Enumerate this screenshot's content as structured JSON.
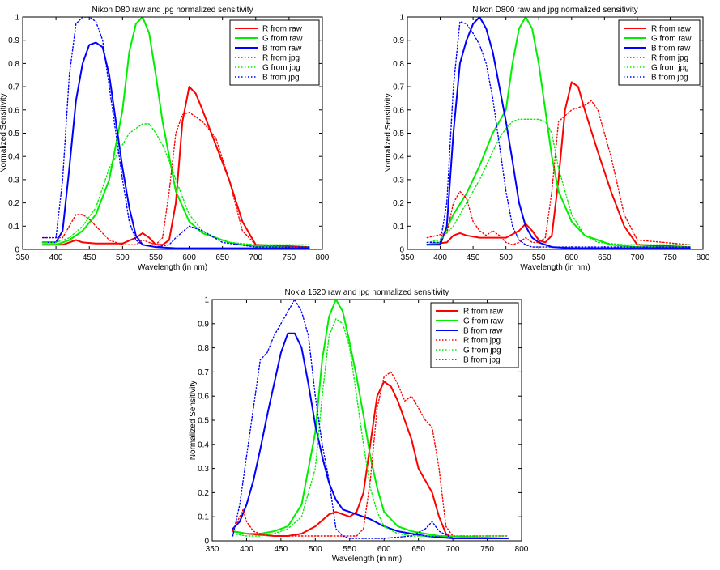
{
  "chart_data": [
    {
      "type": "line",
      "title": "Nikon D80 raw and jpg normalized sensitivity",
      "xlabel": "Wavelength (in nm)",
      "ylabel": "Normalized Sensitivity",
      "xlim": [
        350,
        800
      ],
      "ylim": [
        0,
        1
      ],
      "xticks": [
        "350",
        "400",
        "450",
        "500",
        "550",
        "600",
        "650",
        "700",
        "750",
        "800"
      ],
      "yticks": [
        "0",
        "0.1",
        "0.2",
        "0.3",
        "0.4",
        "0.5",
        "0.6",
        "0.7",
        "0.8",
        "0.9",
        "1"
      ],
      "legend_position": "top-right",
      "series": [
        {
          "name": "R from raw",
          "color": "#ff0000",
          "dash": "solid",
          "x": [
            380,
            410,
            420,
            430,
            440,
            460,
            480,
            500,
            520,
            530,
            540,
            550,
            560,
            570,
            580,
            590,
            600,
            610,
            620,
            640,
            660,
            680,
            700,
            780
          ],
          "y": [
            0.02,
            0.02,
            0.03,
            0.04,
            0.03,
            0.025,
            0.025,
            0.025,
            0.05,
            0.07,
            0.05,
            0.02,
            0.02,
            0.04,
            0.2,
            0.55,
            0.7,
            0.67,
            0.6,
            0.45,
            0.3,
            0.12,
            0.02,
            0.01
          ]
        },
        {
          "name": "G from raw",
          "color": "#00ee00",
          "dash": "solid",
          "x": [
            380,
            400,
            420,
            440,
            460,
            480,
            500,
            510,
            520,
            530,
            540,
            550,
            560,
            580,
            600,
            620,
            640,
            660,
            680,
            700,
            780
          ],
          "y": [
            0.02,
            0.02,
            0.04,
            0.08,
            0.15,
            0.3,
            0.6,
            0.85,
            0.97,
            1.0,
            0.93,
            0.75,
            0.55,
            0.25,
            0.12,
            0.07,
            0.05,
            0.03,
            0.02,
            0.015,
            0.01
          ]
        },
        {
          "name": "B from raw",
          "color": "#0000ff",
          "dash": "solid",
          "x": [
            380,
            400,
            410,
            420,
            430,
            440,
            450,
            460,
            470,
            480,
            490,
            500,
            510,
            520,
            530,
            550,
            580,
            600,
            780
          ],
          "y": [
            0.03,
            0.03,
            0.08,
            0.35,
            0.64,
            0.8,
            0.88,
            0.89,
            0.87,
            0.75,
            0.55,
            0.35,
            0.18,
            0.06,
            0.02,
            0.01,
            0.005,
            0.005,
            0.005
          ]
        },
        {
          "name": "R from jpg",
          "color": "#ff0000",
          "dash": "dotted",
          "x": [
            380,
            410,
            420,
            430,
            440,
            450,
            460,
            480,
            500,
            520,
            530,
            540,
            550,
            560,
            570,
            580,
            590,
            600,
            620,
            640,
            660,
            680,
            700,
            780
          ],
          "y": [
            0.05,
            0.05,
            0.1,
            0.15,
            0.15,
            0.13,
            0.1,
            0.04,
            0.02,
            0.02,
            0.04,
            0.03,
            0.02,
            0.05,
            0.25,
            0.5,
            0.58,
            0.59,
            0.55,
            0.48,
            0.3,
            0.08,
            0.02,
            0.01
          ]
        },
        {
          "name": "G from jpg",
          "color": "#00ee00",
          "dash": "dotted",
          "x": [
            380,
            400,
            420,
            440,
            460,
            480,
            500,
            510,
            520,
            530,
            540,
            550,
            560,
            570,
            580,
            600,
            620,
            640,
            660,
            700,
            780
          ],
          "y": [
            0.03,
            0.03,
            0.05,
            0.1,
            0.18,
            0.35,
            0.45,
            0.5,
            0.52,
            0.54,
            0.54,
            0.5,
            0.45,
            0.38,
            0.3,
            0.15,
            0.08,
            0.05,
            0.03,
            0.02,
            0.02
          ]
        },
        {
          "name": "B from jpg",
          "color": "#0000ff",
          "dash": "dotted",
          "x": [
            380,
            400,
            410,
            420,
            430,
            440,
            450,
            460,
            470,
            480,
            490,
            500,
            510,
            520,
            530,
            550,
            570,
            580,
            600,
            620,
            650,
            700,
            780
          ],
          "y": [
            0.05,
            0.05,
            0.3,
            0.75,
            0.97,
            1.0,
            1.0,
            0.98,
            0.9,
            0.7,
            0.5,
            0.3,
            0.12,
            0.04,
            0.02,
            0.01,
            0.02,
            0.05,
            0.1,
            0.08,
            0.03,
            0.01,
            0.01
          ]
        }
      ]
    },
    {
      "type": "line",
      "title": "Nikon D800 raw and jpg normalized sensitivity",
      "xlabel": "Wavelength (in nm)",
      "ylabel": "Normalized Sensitivity",
      "xlim": [
        350,
        800
      ],
      "ylim": [
        0,
        1
      ],
      "xticks": [
        "350",
        "400",
        "450",
        "500",
        "550",
        "600",
        "650",
        "700",
        "750",
        "800"
      ],
      "yticks": [
        "0",
        "0.1",
        "0.2",
        "0.3",
        "0.4",
        "0.5",
        "0.6",
        "0.7",
        "0.8",
        "0.9",
        "1"
      ],
      "legend_position": "top-right",
      "series": [
        {
          "name": "R from raw",
          "color": "#ff0000",
          "dash": "solid",
          "x": [
            380,
            410,
            420,
            430,
            440,
            460,
            480,
            500,
            520,
            530,
            540,
            550,
            560,
            570,
            580,
            590,
            600,
            610,
            620,
            640,
            660,
            680,
            700,
            780
          ],
          "y": [
            0.02,
            0.03,
            0.06,
            0.07,
            0.06,
            0.05,
            0.05,
            0.05,
            0.08,
            0.11,
            0.08,
            0.04,
            0.03,
            0.06,
            0.3,
            0.6,
            0.72,
            0.7,
            0.6,
            0.42,
            0.25,
            0.1,
            0.02,
            0.01
          ]
        },
        {
          "name": "G from raw",
          "color": "#00ee00",
          "dash": "solid",
          "x": [
            380,
            400,
            420,
            440,
            460,
            480,
            500,
            510,
            520,
            530,
            540,
            550,
            560,
            570,
            580,
            600,
            620,
            640,
            660,
            680,
            700,
            780
          ],
          "y": [
            0.02,
            0.03,
            0.15,
            0.24,
            0.36,
            0.5,
            0.6,
            0.8,
            0.95,
            1.0,
            0.95,
            0.8,
            0.6,
            0.4,
            0.25,
            0.12,
            0.06,
            0.04,
            0.02,
            0.015,
            0.01,
            0.01
          ]
        },
        {
          "name": "B from raw",
          "color": "#0000ff",
          "dash": "solid",
          "x": [
            380,
            400,
            410,
            420,
            430,
            440,
            450,
            460,
            470,
            480,
            490,
            500,
            510,
            520,
            530,
            540,
            550,
            570,
            600,
            780
          ],
          "y": [
            0.02,
            0.02,
            0.1,
            0.5,
            0.8,
            0.9,
            0.97,
            1.0,
            0.95,
            0.85,
            0.7,
            0.55,
            0.38,
            0.2,
            0.1,
            0.05,
            0.03,
            0.01,
            0.005,
            0.005
          ]
        },
        {
          "name": "R from jpg",
          "color": "#ff0000",
          "dash": "dotted",
          "x": [
            380,
            410,
            420,
            430,
            440,
            450,
            460,
            470,
            480,
            490,
            500,
            510,
            520,
            530,
            540,
            550,
            560,
            570,
            580,
            600,
            620,
            630,
            640,
            660,
            680,
            700,
            780
          ],
          "y": [
            0.05,
            0.07,
            0.2,
            0.25,
            0.22,
            0.12,
            0.08,
            0.06,
            0.08,
            0.06,
            0.03,
            0.02,
            0.03,
            0.05,
            0.03,
            0.03,
            0.05,
            0.25,
            0.55,
            0.6,
            0.62,
            0.64,
            0.6,
            0.4,
            0.15,
            0.04,
            0.02
          ]
        },
        {
          "name": "G from jpg",
          "color": "#00ee00",
          "dash": "dotted",
          "x": [
            380,
            400,
            420,
            440,
            460,
            480,
            490,
            500,
            510,
            520,
            530,
            540,
            550,
            560,
            570,
            580,
            600,
            620,
            640,
            680,
            780
          ],
          "y": [
            0.03,
            0.04,
            0.1,
            0.2,
            0.3,
            0.42,
            0.48,
            0.52,
            0.55,
            0.56,
            0.56,
            0.56,
            0.56,
            0.55,
            0.5,
            0.35,
            0.15,
            0.06,
            0.03,
            0.02,
            0.02
          ]
        },
        {
          "name": "B from jpg",
          "color": "#0000ff",
          "dash": "dotted",
          "x": [
            380,
            400,
            410,
            420,
            430,
            440,
            450,
            460,
            470,
            480,
            490,
            500,
            510,
            520,
            530,
            540,
            550,
            600,
            780
          ],
          "y": [
            0.03,
            0.03,
            0.2,
            0.7,
            0.98,
            0.97,
            0.93,
            0.88,
            0.8,
            0.65,
            0.45,
            0.25,
            0.1,
            0.04,
            0.02,
            0.01,
            0.01,
            0.01,
            0.01
          ]
        }
      ]
    },
    {
      "type": "line",
      "title": "Nokia 1520 raw and jpg normalized sensitivity",
      "xlabel": "Wavelength (in nm)",
      "ylabel": "Normalized Sensitivity",
      "xlim": [
        350,
        800
      ],
      "ylim": [
        0,
        1
      ],
      "xticks": [
        "350",
        "400",
        "450",
        "500",
        "550",
        "600",
        "650",
        "700",
        "750",
        "800"
      ],
      "yticks": [
        "0",
        "0.1",
        "0.2",
        "0.3",
        "0.4",
        "0.5",
        "0.6",
        "0.7",
        "0.8",
        "0.9",
        "1"
      ],
      "legend_position": "top-right",
      "series": [
        {
          "name": "R from raw",
          "color": "#ff0000",
          "dash": "solid",
          "x": [
            380,
            400,
            420,
            440,
            460,
            480,
            500,
            520,
            530,
            540,
            550,
            560,
            570,
            580,
            590,
            600,
            610,
            620,
            630,
            640,
            650,
            660,
            670,
            680,
            690,
            700,
            780
          ],
          "y": [
            0.04,
            0.03,
            0.025,
            0.02,
            0.02,
            0.03,
            0.06,
            0.11,
            0.12,
            0.11,
            0.1,
            0.12,
            0.2,
            0.4,
            0.6,
            0.66,
            0.64,
            0.58,
            0.5,
            0.42,
            0.3,
            0.25,
            0.2,
            0.1,
            0.03,
            0.01,
            0.01
          ]
        },
        {
          "name": "G from raw",
          "color": "#00ee00",
          "dash": "solid",
          "x": [
            380,
            400,
            420,
            440,
            460,
            480,
            500,
            510,
            520,
            530,
            540,
            550,
            560,
            570,
            580,
            590,
            600,
            620,
            640,
            660,
            680,
            780
          ],
          "y": [
            0.04,
            0.03,
            0.03,
            0.04,
            0.06,
            0.15,
            0.45,
            0.75,
            0.93,
            1.0,
            0.95,
            0.82,
            0.68,
            0.52,
            0.35,
            0.22,
            0.12,
            0.06,
            0.04,
            0.03,
            0.02,
            0.01
          ]
        },
        {
          "name": "B from raw",
          "color": "#0000ff",
          "dash": "solid",
          "x": [
            380,
            390,
            400,
            410,
            420,
            430,
            440,
            450,
            460,
            470,
            480,
            490,
            500,
            510,
            520,
            530,
            540,
            550,
            560,
            570,
            580,
            600,
            620,
            640,
            660,
            680,
            700,
            780
          ],
          "y": [
            0.05,
            0.08,
            0.15,
            0.25,
            0.38,
            0.52,
            0.65,
            0.78,
            0.86,
            0.86,
            0.8,
            0.65,
            0.48,
            0.35,
            0.24,
            0.17,
            0.13,
            0.12,
            0.11,
            0.1,
            0.09,
            0.06,
            0.04,
            0.03,
            0.02,
            0.015,
            0.01,
            0.01
          ]
        },
        {
          "name": "R from jpg",
          "color": "#ff0000",
          "dash": "dotted",
          "x": [
            380,
            390,
            395,
            400,
            410,
            420,
            440,
            460,
            480,
            500,
            520,
            540,
            560,
            570,
            580,
            590,
            600,
            610,
            620,
            630,
            640,
            650,
            660,
            670,
            680,
            690,
            700,
            780
          ],
          "y": [
            0.04,
            0.1,
            0.13,
            0.08,
            0.04,
            0.03,
            0.02,
            0.02,
            0.02,
            0.02,
            0.02,
            0.02,
            0.02,
            0.05,
            0.25,
            0.55,
            0.68,
            0.7,
            0.65,
            0.58,
            0.6,
            0.55,
            0.5,
            0.47,
            0.3,
            0.06,
            0.02,
            0.02
          ]
        },
        {
          "name": "G from jpg",
          "color": "#00ee00",
          "dash": "dotted",
          "x": [
            380,
            400,
            420,
            440,
            460,
            480,
            500,
            510,
            520,
            530,
            540,
            550,
            560,
            570,
            580,
            590,
            600,
            620,
            640,
            660,
            680,
            780
          ],
          "y": [
            0.03,
            0.02,
            0.02,
            0.03,
            0.05,
            0.1,
            0.3,
            0.6,
            0.85,
            0.92,
            0.9,
            0.8,
            0.6,
            0.4,
            0.22,
            0.12,
            0.06,
            0.03,
            0.02,
            0.02,
            0.02,
            0.02
          ]
        },
        {
          "name": "B from jpg",
          "color": "#0000ff",
          "dash": "dotted",
          "x": [
            380,
            390,
            400,
            410,
            420,
            430,
            440,
            450,
            460,
            470,
            480,
            490,
            500,
            510,
            520,
            530,
            540,
            550,
            600,
            640,
            660,
            670,
            680,
            700,
            780
          ],
          "y": [
            0.02,
            0.15,
            0.35,
            0.55,
            0.75,
            0.78,
            0.85,
            0.9,
            0.95,
            1.0,
            0.95,
            0.85,
            0.6,
            0.4,
            0.25,
            0.05,
            0.02,
            0.01,
            0.01,
            0.02,
            0.05,
            0.08,
            0.04,
            0.01,
            0.01
          ]
        }
      ]
    }
  ]
}
